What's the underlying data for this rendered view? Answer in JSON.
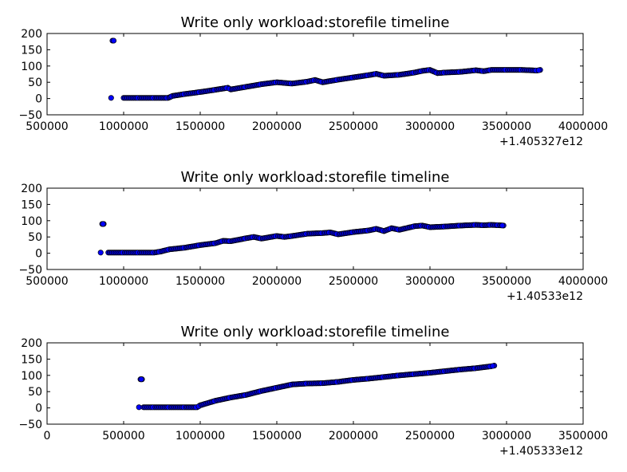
{
  "chart_data": [
    {
      "type": "scatter",
      "title": "Write only workload:storefile timeline",
      "xlabel": "",
      "ylabel": "",
      "xlim": [
        500000,
        4000000
      ],
      "ylim": [
        -50,
        200
      ],
      "xticks": [
        500000,
        1000000,
        1500000,
        2000000,
        2500000,
        3000000,
        3500000,
        4000000
      ],
      "xtick_labels": [
        "500000",
        "1000000",
        "1500000",
        "2000000",
        "2500000",
        "3000000",
        "3500000",
        "4000000"
      ],
      "yticks": [
        -50,
        0,
        50,
        100,
        150,
        200
      ],
      "ytick_labels": [
        "−50",
        "0",
        "50",
        "100",
        "150",
        "200"
      ],
      "x_offset_label": "+1.405327e12",
      "grid": false,
      "marker_color": "#0000ff",
      "series": [
        {
          "x": [
            918000,
            927000,
            935000,
            1000000,
            1100000,
            1200000,
            1290000,
            1320000,
            1400000,
            1500000,
            1600000,
            1680000,
            1700000,
            1800000,
            1900000,
            2000000,
            2100000,
            2200000,
            2250000,
            2300000,
            2400000,
            2500000,
            2600000,
            2650000,
            2700000,
            2800000,
            2900000,
            2950000,
            3000000,
            3050000,
            3100000,
            3200000,
            3300000,
            3350000,
            3400000,
            3500000,
            3600000,
            3700000,
            3720000
          ],
          "y": [
            2,
            178,
            178,
            2,
            2,
            2,
            2,
            8,
            14,
            20,
            27,
            33,
            28,
            36,
            44,
            50,
            46,
            52,
            57,
            50,
            58,
            65,
            72,
            76,
            70,
            73,
            80,
            85,
            88,
            78,
            80,
            82,
            87,
            84,
            88,
            88,
            88,
            86,
            88
          ]
        }
      ]
    },
    {
      "type": "scatter",
      "title": "Write only workload:storefile timeline",
      "xlabel": "",
      "ylabel": "",
      "xlim": [
        500000,
        4000000
      ],
      "ylim": [
        -50,
        200
      ],
      "xticks": [
        500000,
        1000000,
        1500000,
        2000000,
        2500000,
        3000000,
        3500000,
        4000000
      ],
      "xtick_labels": [
        "500000",
        "1000000",
        "1500000",
        "2000000",
        "2500000",
        "3000000",
        "3500000",
        "4000000"
      ],
      "yticks": [
        -50,
        0,
        50,
        100,
        150,
        200
      ],
      "ytick_labels": [
        "−50",
        "0",
        "50",
        "100",
        "150",
        "200"
      ],
      "x_offset_label": "+1.40533e12",
      "grid": false,
      "marker_color": "#0000ff",
      "series": [
        {
          "x": [
            850000,
            860000,
            870000,
            900000,
            1000000,
            1100000,
            1200000,
            1240000,
            1300000,
            1400000,
            1500000,
            1600000,
            1650000,
            1700000,
            1800000,
            1850000,
            1900000,
            2000000,
            2050000,
            2100000,
            2200000,
            2300000,
            2350000,
            2400000,
            2500000,
            2600000,
            2650000,
            2700000,
            2750000,
            2800000,
            2900000,
            2950000,
            3000000,
            3100000,
            3200000,
            3300000,
            3350000,
            3400000,
            3450000,
            3480000
          ],
          "y": [
            2,
            90,
            90,
            2,
            2,
            2,
            2,
            5,
            12,
            17,
            25,
            31,
            38,
            37,
            46,
            50,
            45,
            53,
            50,
            53,
            60,
            62,
            64,
            58,
            65,
            70,
            75,
            68,
            77,
            72,
            83,
            85,
            80,
            82,
            85,
            87,
            86,
            87,
            86,
            85
          ]
        }
      ]
    },
    {
      "type": "scatter",
      "title": "Write only workload:storefile timeline",
      "xlabel": "",
      "ylabel": "",
      "xlim": [
        0,
        3500000
      ],
      "ylim": [
        -50,
        200
      ],
      "xticks": [
        0,
        500000,
        1000000,
        1500000,
        2000000,
        2500000,
        3000000,
        3500000
      ],
      "xtick_labels": [
        "0",
        "500000",
        "1000000",
        "1500000",
        "2000000",
        "2500000",
        "3000000",
        "3500000"
      ],
      "yticks": [
        -50,
        0,
        50,
        100,
        150,
        200
      ],
      "ytick_labels": [
        "−50",
        "0",
        "50",
        "100",
        "150",
        "200"
      ],
      "x_offset_label": "+1.405333e12",
      "grid": false,
      "marker_color": "#0000ff",
      "series": [
        {
          "x": [
            600000,
            610000,
            620000,
            630000,
            700000,
            800000,
            900000,
            980000,
            1000000,
            1100000,
            1200000,
            1300000,
            1400000,
            1500000,
            1600000,
            1700000,
            1800000,
            1900000,
            2000000,
            2100000,
            2200000,
            2300000,
            2400000,
            2500000,
            2600000,
            2700000,
            2800000,
            2900000,
            2920000
          ],
          "y": [
            2,
            88,
            88,
            2,
            2,
            2,
            2,
            2,
            8,
            22,
            32,
            40,
            52,
            62,
            72,
            75,
            76,
            80,
            86,
            90,
            95,
            100,
            104,
            108,
            113,
            118,
            122,
            128,
            130
          ]
        }
      ]
    }
  ]
}
